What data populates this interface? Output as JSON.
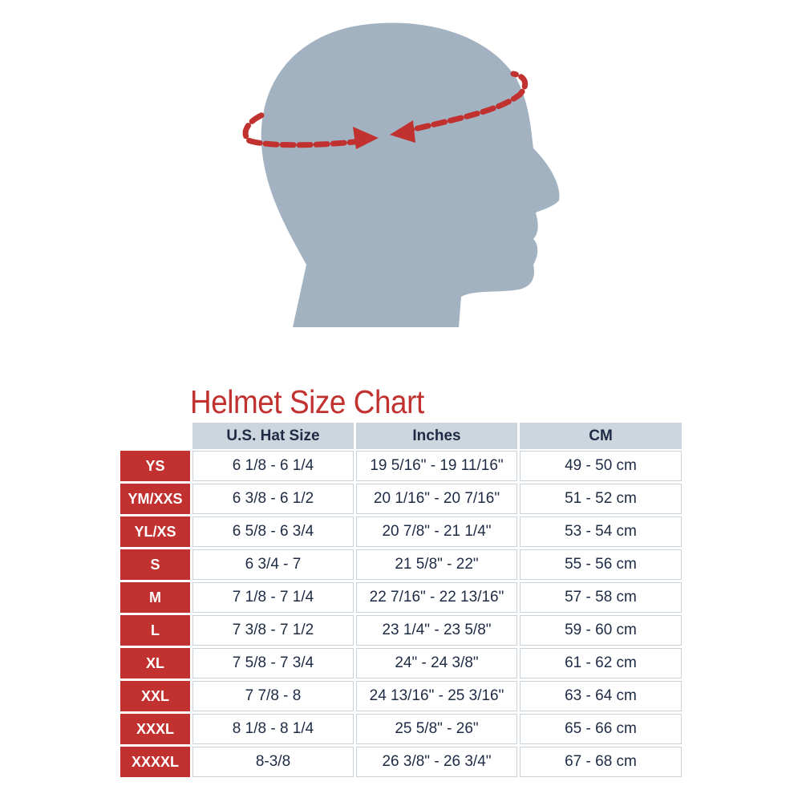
{
  "colors": {
    "accent": "#c0312f",
    "head": "#a3b2c1",
    "header_bg": "#cdd6de",
    "text": "#1e2b44"
  },
  "illustration": {
    "icon": "head-circumference-measure-icon"
  },
  "title": "Helmet Size Chart",
  "columns": [
    "U.S. Hat Size",
    "Inches",
    "CM"
  ],
  "rows": [
    {
      "size": "YS",
      "hat": "6 1/8 - 6 1/4",
      "inches": "19 5/16\" - 19 11/16\"",
      "cm": "49 - 50 cm"
    },
    {
      "size": "YM/XXS",
      "hat": "6 3/8 - 6 1/2",
      "inches": "20 1/16\" - 20 7/16\"",
      "cm": "51 - 52 cm"
    },
    {
      "size": "YL/XS",
      "hat": "6 5/8 - 6 3/4",
      "inches": "20 7/8\" - 21 1/4\"",
      "cm": "53 - 54 cm"
    },
    {
      "size": "S",
      "hat": "6 3/4 - 7",
      "inches": "21 5/8\" - 22\"",
      "cm": "55 - 56 cm"
    },
    {
      "size": "M",
      "hat": "7 1/8 - 7 1/4",
      "inches": "22 7/16\" - 22 13/16\"",
      "cm": "57 - 58 cm"
    },
    {
      "size": "L",
      "hat": "7 3/8 - 7 1/2",
      "inches": "23 1/4\" - 23 5/8\"",
      "cm": "59 - 60 cm"
    },
    {
      "size": "XL",
      "hat": "7 5/8 - 7 3/4",
      "inches": "24\" - 24 3/8\"",
      "cm": "61 - 62 cm"
    },
    {
      "size": "XXL",
      "hat": "7 7/8 - 8",
      "inches": "24 13/16\" - 25 3/16\"",
      "cm": "63 - 64 cm"
    },
    {
      "size": "XXXL",
      "hat": "8 1/8 - 8 1/4",
      "inches": "25 5/8\" - 26\"",
      "cm": "65 - 66 cm"
    },
    {
      "size": "XXXXL",
      "hat": "8-3/8",
      "inches": "26 3/8\" - 26 3/4\"",
      "cm": "67 - 68 cm"
    }
  ]
}
